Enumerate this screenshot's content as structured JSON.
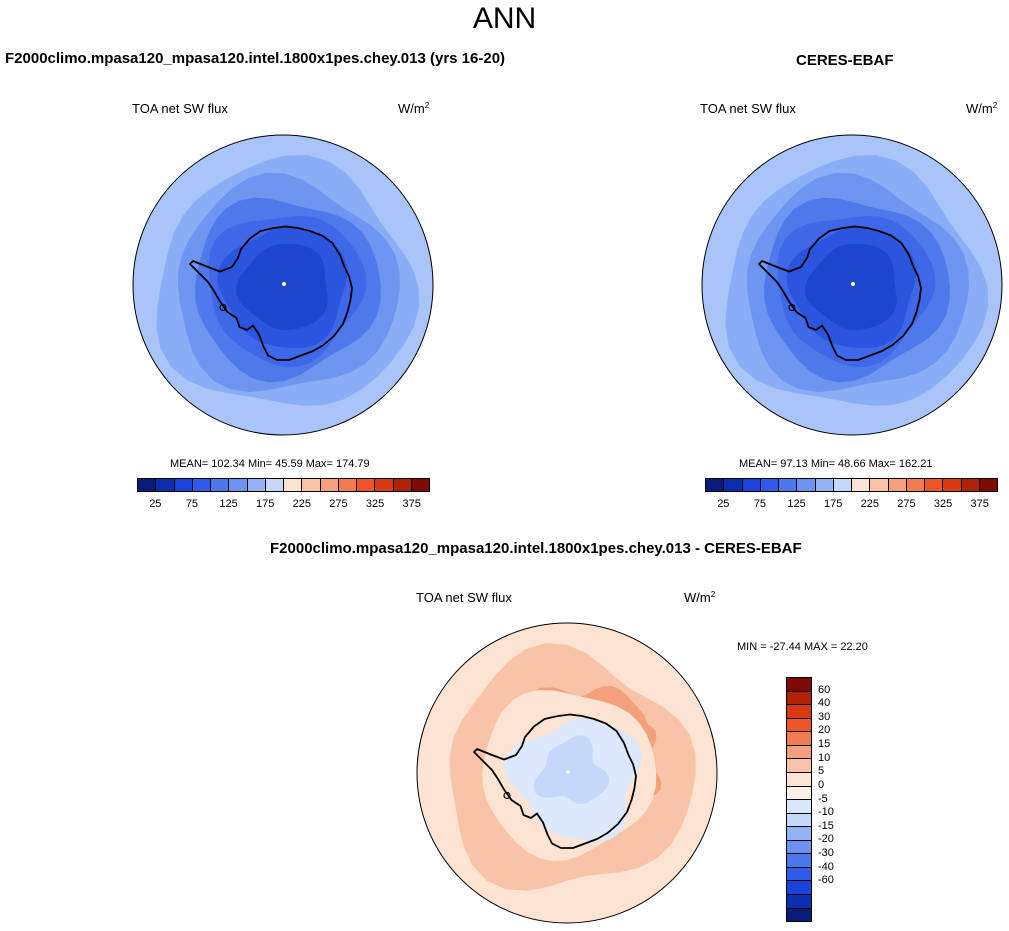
{
  "main_title": "ANN",
  "panels": [
    {
      "title": "F2000climo.mpasa120_mpasa120.intel.1800x1pes.chey.013 (yrs 16-20)",
      "field": "TOA net SW flux",
      "units_base": "W/m",
      "units_exp": "2",
      "stats": "MEAN= 102.34  Min=  45.59  Max= 174.79"
    },
    {
      "title": "CERES-EBAF",
      "field": "TOA net SW flux",
      "units_base": "W/m",
      "units_exp": "2",
      "stats": "MEAN=  97.13  Min=  48.66  Max= 162.21"
    },
    {
      "title": "F2000climo.mpasa120_mpasa120.intel.1800x1pes.chey.013 - CERES-EBAF",
      "field": "TOA net SW flux",
      "units_base": "W/m",
      "units_exp": "2",
      "stats": "MIN = -27.44 MAX =  22.20"
    }
  ],
  "colorbar_field": {
    "colors": [
      "#081C7A",
      "#0B2DAE",
      "#1A43D9",
      "#2E5CE8",
      "#4A77EC",
      "#6B92F0",
      "#93B3F5",
      "#C4D8FA",
      "#FCE3D2",
      "#F8C3A6",
      "#F5A07C",
      "#F27B52",
      "#EC5628",
      "#D83812",
      "#B02208",
      "#7D0A03"
    ],
    "ticks": [
      "25",
      "75",
      "125",
      "175",
      "225",
      "275",
      "325",
      "375"
    ]
  },
  "colorbar_diff": {
    "colors": [
      "#7D0A03",
      "#B02208",
      "#D83812",
      "#EC5628",
      "#F27B52",
      "#F5A07C",
      "#F8C3A6",
      "#FCE3D2",
      "#FDF2E8",
      "#DCE8FB",
      "#C4D8FA",
      "#93B3F5",
      "#6B92F0",
      "#4A77EC",
      "#2E5CE8",
      "#1A43D9",
      "#0B2DAE",
      "#081C7A"
    ],
    "ticks": [
      "60",
      "40",
      "30",
      "20",
      "15",
      "10",
      "5",
      "0",
      "-5",
      "-10",
      "-15",
      "-20",
      "-30",
      "-40",
      "-60"
    ]
  },
  "map_colors": {
    "model": [
      "#A8C4F8",
      "#8AAEF5",
      "#6E96F0",
      "#4F79EA",
      "#3E68E7",
      "#2A55DE",
      "#1D45D0"
    ],
    "obs": [
      "#A8C4F8",
      "#8AAEF5",
      "#6E96F0",
      "#4F79EA",
      "#3E68E7",
      "#2A55DE",
      "#1D45D0"
    ],
    "diff": [
      "#FCE3D2",
      "#F8C3A6",
      "#F5A07C",
      "#DCE8FB",
      "#C4D8FA"
    ]
  },
  "chart_data": {
    "type": "heatmap",
    "projection": "polar stereographic (south pole)",
    "season": "ANN",
    "field": "TOA net SW flux",
    "units": "W/m2",
    "panels": [
      {
        "name": "F2000climo.mpasa120_mpasa120.intel.1800x1pes.chey.013 (yrs 16-20)",
        "mean": 102.34,
        "min": 45.59,
        "max": 174.79,
        "contour_levels": [
          25,
          50,
          75,
          100,
          125,
          150,
          175,
          200,
          225,
          250,
          275,
          300,
          325,
          350,
          375
        ]
      },
      {
        "name": "CERES-EBAF",
        "mean": 97.13,
        "min": 48.66,
        "max": 162.21,
        "contour_levels": [
          25,
          50,
          75,
          100,
          125,
          150,
          175,
          200,
          225,
          250,
          275,
          300,
          325,
          350,
          375
        ]
      },
      {
        "name": "F2000climo.mpasa120_mpasa120.intel.1800x1pes.chey.013 - CERES-EBAF",
        "min": -27.44,
        "max": 22.2,
        "contour_levels": [
          -60,
          -40,
          -30,
          -20,
          -15,
          -10,
          -5,
          0,
          5,
          10,
          15,
          20,
          30,
          40,
          60
        ]
      }
    ]
  }
}
